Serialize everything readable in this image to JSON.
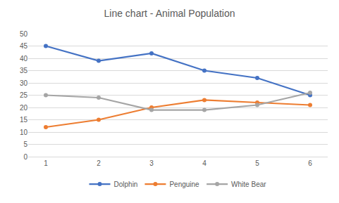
{
  "chart_data": {
    "type": "line",
    "title": "Line chart - Animal Population",
    "categories": [
      "1",
      "2",
      "3",
      "4",
      "5",
      "6"
    ],
    "series": [
      {
        "name": "Dolphin",
        "color": "#4472c4",
        "values": [
          45,
          39,
          42,
          35,
          32,
          25
        ]
      },
      {
        "name": "Penguine",
        "color": "#ed7d31",
        "values": [
          12,
          15,
          20,
          23,
          22,
          21
        ]
      },
      {
        "name": "White Bear",
        "color": "#a5a5a5",
        "values": [
          25,
          24,
          19,
          19,
          21,
          26
        ]
      }
    ],
    "ylim": [
      0,
      50
    ],
    "yticks": [
      0,
      5,
      10,
      15,
      20,
      25,
      30,
      35,
      40,
      45,
      50
    ],
    "grid": true,
    "legend": "bottom",
    "marker": "circle"
  }
}
